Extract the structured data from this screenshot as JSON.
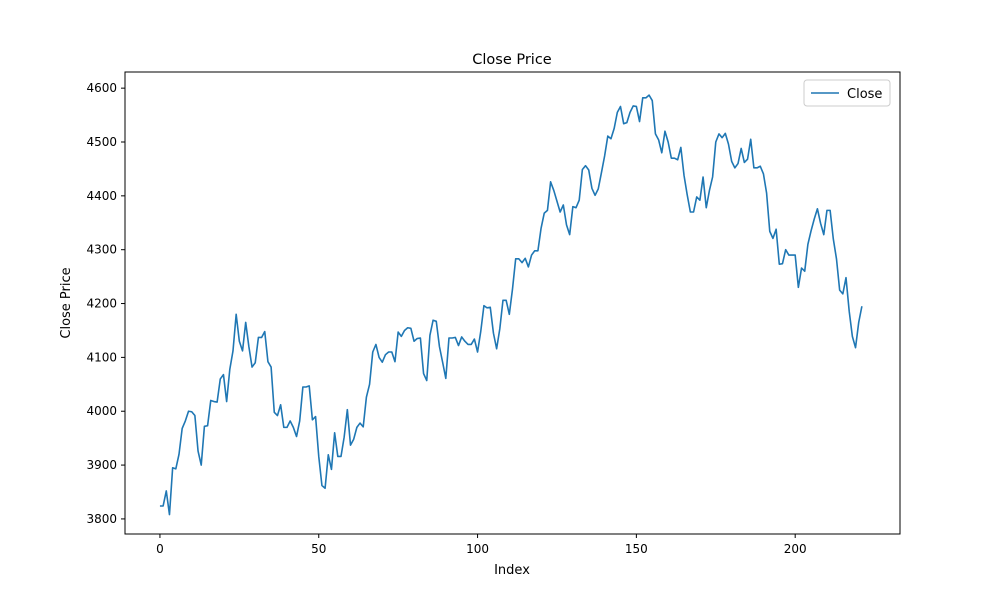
{
  "chart_data": {
    "type": "line",
    "title": "Close Price",
    "xlabel": "Index",
    "ylabel": "Close Price",
    "xlim": [
      -11,
      233
    ],
    "ylim": [
      3772,
      4630
    ],
    "xticks": [
      0,
      50,
      100,
      150,
      200
    ],
    "yticks": [
      3800,
      3900,
      4000,
      4100,
      4200,
      4300,
      4400,
      4500,
      4600
    ],
    "grid": false,
    "legend": {
      "position": "top-right",
      "entries": [
        "Close"
      ]
    },
    "series": [
      {
        "name": "Close",
        "color": "#1f77b4",
        "x": [
          0,
          1,
          2,
          3,
          4,
          5,
          6,
          7,
          8,
          9,
          10,
          11,
          12,
          13,
          14,
          15,
          16,
          17,
          18,
          19,
          20,
          21,
          22,
          23,
          24,
          25,
          26,
          27,
          28,
          29,
          30,
          31,
          32,
          33,
          34,
          35,
          36,
          37,
          38,
          39,
          40,
          41,
          42,
          43,
          44,
          45,
          46,
          47,
          48,
          49,
          50,
          51,
          52,
          53,
          54,
          55,
          56,
          57,
          58,
          59,
          60,
          61,
          62,
          63,
          64,
          65,
          66,
          67,
          68,
          69,
          70,
          71,
          72,
          73,
          74,
          75,
          76,
          77,
          78,
          79,
          80,
          81,
          82,
          83,
          84,
          85,
          86,
          87,
          88,
          89,
          90,
          91,
          92,
          93,
          94,
          95,
          96,
          97,
          98,
          99,
          100,
          101,
          102,
          103,
          104,
          105,
          106,
          107,
          108,
          109,
          110,
          111,
          112,
          113,
          114,
          115,
          116,
          117,
          118,
          119,
          120,
          121,
          122,
          123,
          124,
          125,
          126,
          127,
          128,
          129,
          130,
          131,
          132,
          133,
          134,
          135,
          136,
          137,
          138,
          139,
          140,
          141,
          142,
          143,
          144,
          145,
          146,
          147,
          148,
          149,
          150,
          151,
          152,
          153,
          154,
          155,
          156,
          157,
          158,
          159,
          160,
          161,
          162,
          163,
          164,
          165,
          166,
          167,
          168,
          169,
          170,
          171,
          172,
          173,
          174,
          175,
          176,
          177,
          178,
          179,
          180,
          181,
          182,
          183,
          184,
          185,
          186,
          187,
          188,
          189,
          190,
          191,
          192,
          193,
          194,
          195,
          196,
          197,
          198,
          199,
          200,
          201,
          202,
          203,
          204,
          205,
          206,
          207,
          208,
          209,
          210,
          211,
          212,
          213,
          214,
          215,
          216,
          217,
          218,
          219,
          220,
          221
        ],
        "values": [
          3824,
          3824,
          3852,
          3808,
          3895,
          3893,
          3920,
          3968,
          3982,
          4000,
          3999,
          3992,
          3926,
          3900,
          3972,
          3973,
          4020,
          4018,
          4017,
          4060,
          4068,
          4018,
          4078,
          4112,
          4180,
          4130,
          4112,
          4165,
          4120,
          4082,
          4090,
          4137,
          4137,
          4148,
          4092,
          4082,
          3998,
          3992,
          4012,
          3970,
          3970,
          3982,
          3970,
          3953,
          3982,
          4045,
          4045,
          4047,
          3984,
          3990,
          3916,
          3862,
          3857,
          3919,
          3892,
          3960,
          3916,
          3916,
          3952,
          4003,
          3937,
          3948,
          3970,
          3978,
          3971,
          4026,
          4050,
          4110,
          4124,
          4100,
          4091,
          4105,
          4110,
          4110,
          4092,
          4147,
          4139,
          4150,
          4155,
          4154,
          4130,
          4135,
          4136,
          4070,
          4057,
          4141,
          4169,
          4167,
          4120,
          4091,
          4061,
          4136,
          4136,
          4137,
          4122,
          4138,
          4130,
          4124,
          4124,
          4134,
          4110,
          4148,
          4196,
          4192,
          4193,
          4145,
          4116,
          4153,
          4206,
          4206,
          4180,
          4227,
          4283,
          4283,
          4276,
          4284,
          4268,
          4290,
          4298,
          4298,
          4340,
          4368,
          4373,
          4426,
          4410,
          4390,
          4370,
          4383,
          4346,
          4328,
          4380,
          4378,
          4392,
          4449,
          4456,
          4448,
          4414,
          4401,
          4413,
          4443,
          4474,
          4511,
          4506,
          4525,
          4555,
          4566,
          4534,
          4536,
          4555,
          4567,
          4566,
          4538,
          4582,
          4582,
          4587,
          4577,
          4515,
          4504,
          4480,
          4520,
          4500,
          4470,
          4470,
          4467,
          4490,
          4438,
          4402,
          4370,
          4370,
          4398,
          4392,
          4435,
          4378,
          4410,
          4435,
          4500,
          4515,
          4508,
          4516,
          4496,
          4464,
          4452,
          4460,
          4488,
          4462,
          4468,
          4505,
          4452,
          4452,
          4455,
          4441,
          4405,
          4334,
          4321,
          4338,
          4273,
          4274,
          4300,
          4290,
          4290,
          4290,
          4230,
          4266,
          4260,
          4310,
          4335,
          4357,
          4376,
          4349,
          4328,
          4373,
          4373,
          4320,
          4283,
          4225,
          4218,
          4248,
          4186,
          4139,
          4118,
          4165,
          4195
        ]
      }
    ]
  }
}
